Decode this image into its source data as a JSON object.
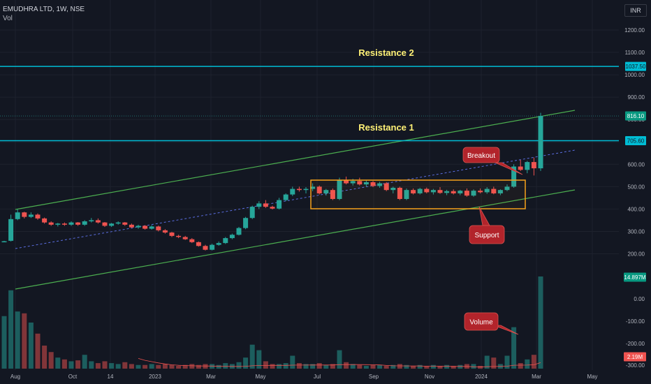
{
  "header": {
    "symbol": "EMUDHRA LTD, 1W, NSE",
    "indicator": "Vol",
    "currency": "INR"
  },
  "colors": {
    "up": "#26a69a",
    "down": "#ef5350",
    "level": "#00bcd4",
    "channel": "#4caf50",
    "box": "#f7a21b",
    "callout": "#b2242b",
    "label": "#fff176",
    "bg": "#131722"
  },
  "chart_data": {
    "type": "candlestick",
    "title": "EMUDHRA LTD, 1W, NSE",
    "price_axis": {
      "ticks": [
        "1200.00",
        "1100.00",
        "1000.00",
        "900.00",
        "800.00",
        "700.00",
        "600.00",
        "500.00",
        "400.00",
        "300.00",
        "200.00"
      ],
      "range": [
        140,
        1250
      ]
    },
    "volume_axis": {
      "ticks": [
        "0.00",
        "-100.00",
        "-200.00",
        "-300.00"
      ]
    },
    "x_axis": {
      "ticks": [
        "Aug",
        "Oct",
        "14",
        "2023",
        "Mar",
        "May",
        "Jul",
        "Sep",
        "Nov",
        "2024",
        "Mar",
        "May"
      ]
    },
    "price_badges": [
      {
        "text": "1037.50",
        "value": 1037.5,
        "style": "level"
      },
      {
        "text": "816.10",
        "value": 816.1,
        "style": "up"
      },
      {
        "text": "705.60",
        "value": 705.6,
        "style": "level"
      }
    ],
    "volume_badges": [
      {
        "text": "14.897M",
        "style": "up"
      },
      {
        "text": "2.19M",
        "style": "down"
      }
    ],
    "levels": [
      {
        "name": "Resistance 2",
        "value": 1037.5
      },
      {
        "name": "Resistance 1",
        "value": 705.6
      }
    ],
    "callouts": [
      "Breakout",
      "Support",
      "Volume"
    ],
    "candles": [
      [
        256,
        258,
        255,
        256
      ],
      [
        258,
        375,
        255,
        355
      ],
      [
        355,
        400,
        350,
        385
      ],
      [
        385,
        388,
        358,
        365
      ],
      [
        365,
        385,
        360,
        375
      ],
      [
        375,
        380,
        352,
        358
      ],
      [
        358,
        362,
        335,
        340
      ],
      [
        340,
        345,
        325,
        330
      ],
      [
        330,
        338,
        322,
        335
      ],
      [
        335,
        340,
        325,
        330
      ],
      [
        330,
        345,
        325,
        340
      ],
      [
        340,
        342,
        325,
        330
      ],
      [
        330,
        350,
        325,
        345
      ],
      [
        345,
        360,
        340,
        350
      ],
      [
        350,
        358,
        335,
        340
      ],
      [
        340,
        342,
        320,
        325
      ],
      [
        325,
        338,
        320,
        335
      ],
      [
        335,
        345,
        330,
        340
      ],
      [
        340,
        342,
        325,
        330
      ],
      [
        330,
        335,
        315,
        318
      ],
      [
        318,
        330,
        312,
        325
      ],
      [
        325,
        328,
        308,
        312
      ],
      [
        312,
        328,
        308,
        322
      ],
      [
        322,
        326,
        300,
        305
      ],
      [
        305,
        310,
        290,
        295
      ],
      [
        295,
        298,
        275,
        280
      ],
      [
        280,
        285,
        270,
        275
      ],
      [
        275,
        280,
        262,
        265
      ],
      [
        265,
        270,
        248,
        252
      ],
      [
        252,
        255,
        232,
        235
      ],
      [
        235,
        240,
        215,
        218
      ],
      [
        218,
        245,
        215,
        240
      ],
      [
        240,
        255,
        236,
        248
      ],
      [
        248,
        275,
        244,
        270
      ],
      [
        270,
        290,
        265,
        285
      ],
      [
        285,
        320,
        282,
        315
      ],
      [
        315,
        365,
        310,
        360
      ],
      [
        360,
        415,
        355,
        410
      ],
      [
        410,
        435,
        400,
        425
      ],
      [
        425,
        440,
        405,
        410
      ],
      [
        410,
        415,
        398,
        402
      ],
      [
        402,
        450,
        398,
        440
      ],
      [
        440,
        470,
        435,
        465
      ],
      [
        465,
        500,
        458,
        490
      ],
      [
        490,
        500,
        478,
        485
      ],
      [
        485,
        498,
        470,
        490
      ],
      [
        490,
        515,
        480,
        500
      ],
      [
        500,
        505,
        465,
        470
      ],
      [
        470,
        490,
        460,
        485
      ],
      [
        485,
        492,
        440,
        445
      ],
      [
        445,
        540,
        440,
        530
      ],
      [
        530,
        545,
        510,
        515
      ],
      [
        515,
        535,
        505,
        525
      ],
      [
        525,
        540,
        505,
        510
      ],
      [
        510,
        528,
        500,
        520
      ],
      [
        520,
        525,
        498,
        503
      ],
      [
        503,
        522,
        495,
        515
      ],
      [
        515,
        520,
        480,
        485
      ],
      [
        485,
        500,
        470,
        495
      ],
      [
        495,
        500,
        440,
        445
      ],
      [
        445,
        492,
        440,
        485
      ],
      [
        485,
        492,
        465,
        470
      ],
      [
        470,
        495,
        465,
        490
      ],
      [
        490,
        496,
        470,
        475
      ],
      [
        475,
        490,
        465,
        485
      ],
      [
        485,
        498,
        468,
        472
      ],
      [
        472,
        486,
        462,
        480
      ],
      [
        480,
        488,
        465,
        470
      ],
      [
        470,
        486,
        462,
        482
      ],
      [
        482,
        492,
        455,
        460
      ],
      [
        460,
        488,
        455,
        482
      ],
      [
        482,
        492,
        470,
        475
      ],
      [
        475,
        498,
        468,
        490
      ],
      [
        490,
        500,
        466,
        470
      ],
      [
        470,
        488,
        462,
        485
      ],
      [
        485,
        510,
        480,
        500
      ],
      [
        500,
        600,
        495,
        590
      ],
      [
        590,
        620,
        570,
        575
      ],
      [
        575,
        615,
        560,
        610
      ],
      [
        610,
        630,
        550,
        582
      ],
      [
        582,
        830,
        570,
        816
      ]
    ],
    "volume": [
      {
        "v": 0.57,
        "d": 0
      },
      {
        "v": 0.85,
        "d": 0
      },
      {
        "v": 0.62,
        "d": 0
      },
      {
        "v": 0.6,
        "d": 1
      },
      {
        "v": 0.5,
        "d": 0
      },
      {
        "v": 0.38,
        "d": 1
      },
      {
        "v": 0.25,
        "d": 1
      },
      {
        "v": 0.18,
        "d": 1
      },
      {
        "v": 0.12,
        "d": 0
      },
      {
        "v": 0.1,
        "d": 1
      },
      {
        "v": 0.08,
        "d": 0
      },
      {
        "v": 0.09,
        "d": 1
      },
      {
        "v": 0.15,
        "d": 0
      },
      {
        "v": 0.08,
        "d": 0
      },
      {
        "v": 0.06,
        "d": 1
      },
      {
        "v": 0.08,
        "d": 1
      },
      {
        "v": 0.06,
        "d": 0
      },
      {
        "v": 0.05,
        "d": 0
      },
      {
        "v": 0.07,
        "d": 1
      },
      {
        "v": 0.05,
        "d": 1
      },
      {
        "v": 0.04,
        "d": 0
      },
      {
        "v": 0.04,
        "d": 1
      },
      {
        "v": 0.05,
        "d": 0
      },
      {
        "v": 0.04,
        "d": 1
      },
      {
        "v": 0.05,
        "d": 1
      },
      {
        "v": 0.04,
        "d": 1
      },
      {
        "v": 0.03,
        "d": 1
      },
      {
        "v": 0.04,
        "d": 1
      },
      {
        "v": 0.05,
        "d": 1
      },
      {
        "v": 0.04,
        "d": 1
      },
      {
        "v": 0.05,
        "d": 1
      },
      {
        "v": 0.05,
        "d": 0
      },
      {
        "v": 0.04,
        "d": 0
      },
      {
        "v": 0.06,
        "d": 0
      },
      {
        "v": 0.05,
        "d": 0
      },
      {
        "v": 0.07,
        "d": 0
      },
      {
        "v": 0.12,
        "d": 0
      },
      {
        "v": 0.26,
        "d": 0
      },
      {
        "v": 0.2,
        "d": 0
      },
      {
        "v": 0.08,
        "d": 1
      },
      {
        "v": 0.05,
        "d": 1
      },
      {
        "v": 0.05,
        "d": 0
      },
      {
        "v": 0.06,
        "d": 0
      },
      {
        "v": 0.14,
        "d": 0
      },
      {
        "v": 0.06,
        "d": 1
      },
      {
        "v": 0.05,
        "d": 0
      },
      {
        "v": 0.05,
        "d": 0
      },
      {
        "v": 0.06,
        "d": 1
      },
      {
        "v": 0.04,
        "d": 0
      },
      {
        "v": 0.05,
        "d": 1
      },
      {
        "v": 0.2,
        "d": 0
      },
      {
        "v": 0.07,
        "d": 1
      },
      {
        "v": 0.05,
        "d": 0
      },
      {
        "v": 0.04,
        "d": 1
      },
      {
        "v": 0.03,
        "d": 0
      },
      {
        "v": 0.04,
        "d": 1
      },
      {
        "v": 0.04,
        "d": 0
      },
      {
        "v": 0.03,
        "d": 1
      },
      {
        "v": 0.04,
        "d": 0
      },
      {
        "v": 0.05,
        "d": 1
      },
      {
        "v": 0.04,
        "d": 0
      },
      {
        "v": 0.03,
        "d": 1
      },
      {
        "v": 0.04,
        "d": 0
      },
      {
        "v": 0.03,
        "d": 1
      },
      {
        "v": 0.04,
        "d": 0
      },
      {
        "v": 0.03,
        "d": 1
      },
      {
        "v": 0.04,
        "d": 0
      },
      {
        "v": 0.03,
        "d": 1
      },
      {
        "v": 0.04,
        "d": 0
      },
      {
        "v": 0.05,
        "d": 1
      },
      {
        "v": 0.05,
        "d": 0
      },
      {
        "v": 0.03,
        "d": 1
      },
      {
        "v": 0.14,
        "d": 0
      },
      {
        "v": 0.12,
        "d": 1
      },
      {
        "v": 0.05,
        "d": 0
      },
      {
        "v": 0.14,
        "d": 0
      },
      {
        "v": 0.45,
        "d": 0
      },
      {
        "v": 0.06,
        "d": 1
      },
      {
        "v": 0.1,
        "d": 0
      },
      {
        "v": 0.15,
        "d": 1
      },
      {
        "v": 1.0,
        "d": 0
      }
    ]
  }
}
